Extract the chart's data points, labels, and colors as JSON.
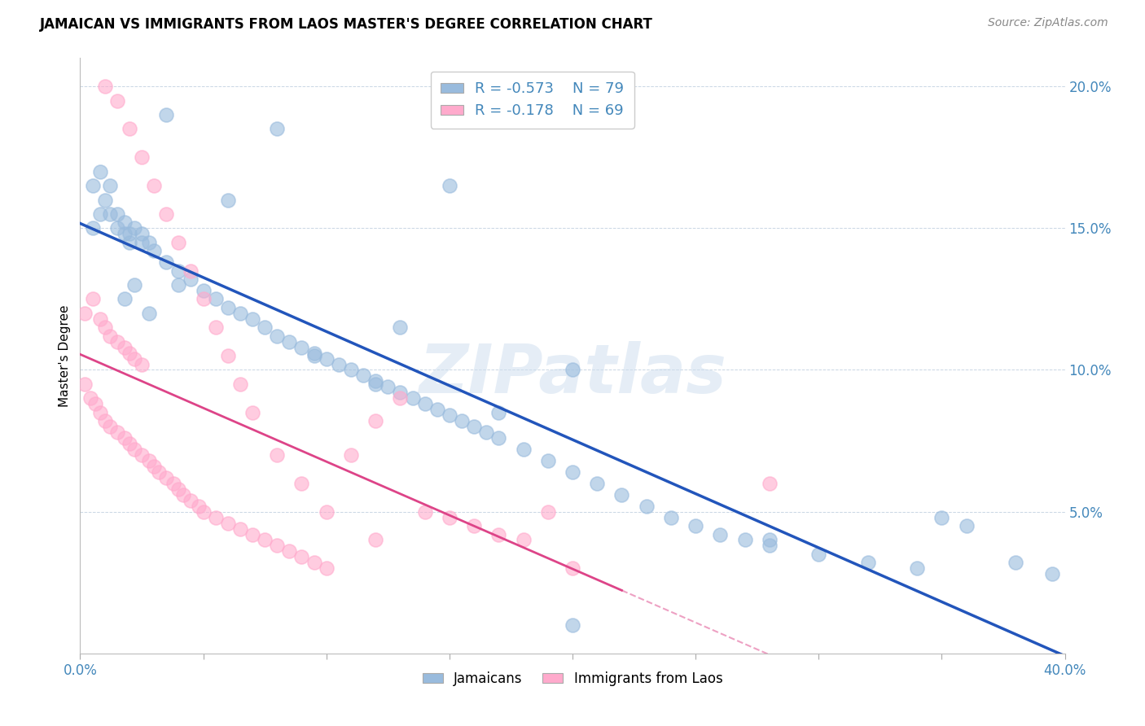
{
  "title": "JAMAICAN VS IMMIGRANTS FROM LAOS MASTER'S DEGREE CORRELATION CHART",
  "source": "Source: ZipAtlas.com",
  "ylabel": "Master's Degree",
  "xlim": [
    0.0,
    0.4
  ],
  "ylim": [
    0.0,
    0.21
  ],
  "yticks": [
    0.05,
    0.1,
    0.15,
    0.2
  ],
  "ytick_labels": [
    "5.0%",
    "10.0%",
    "15.0%",
    "20.0%"
  ],
  "xticks": [
    0.0,
    0.05,
    0.1,
    0.15,
    0.2,
    0.25,
    0.3,
    0.35,
    0.4
  ],
  "xtick_labels_show": [
    "0.0%",
    "",
    "",
    "",
    "",
    "",
    "",
    "",
    "40.0%"
  ],
  "legend_r_blue": "R = -0.573",
  "legend_n_blue": "N = 79",
  "legend_r_pink": "R = -0.178",
  "legend_n_pink": "N = 69",
  "blue_scatter_color": "#99BBDD",
  "pink_scatter_color": "#FFAACC",
  "blue_line_color": "#2255BB",
  "pink_line_color": "#DD4488",
  "watermark": "ZIPatlas",
  "watermark_color": "#CCDDEE",
  "blue_scatter_x": [
    0.005,
    0.008,
    0.01,
    0.012,
    0.015,
    0.018,
    0.02,
    0.022,
    0.025,
    0.028,
    0.005,
    0.008,
    0.012,
    0.015,
    0.018,
    0.02,
    0.025,
    0.03,
    0.035,
    0.04,
    0.045,
    0.05,
    0.055,
    0.06,
    0.065,
    0.07,
    0.075,
    0.08,
    0.085,
    0.09,
    0.095,
    0.1,
    0.105,
    0.11,
    0.115,
    0.12,
    0.125,
    0.13,
    0.135,
    0.14,
    0.145,
    0.15,
    0.155,
    0.16,
    0.165,
    0.17,
    0.18,
    0.19,
    0.2,
    0.21,
    0.22,
    0.23,
    0.24,
    0.25,
    0.26,
    0.27,
    0.28,
    0.3,
    0.32,
    0.34,
    0.36,
    0.38,
    0.395,
    0.06,
    0.08,
    0.13,
    0.15,
    0.12,
    0.095,
    0.04,
    0.035,
    0.028,
    0.022,
    0.018,
    0.2,
    0.17,
    0.28,
    0.35,
    0.2
  ],
  "blue_scatter_y": [
    0.15,
    0.155,
    0.16,
    0.155,
    0.15,
    0.148,
    0.145,
    0.15,
    0.148,
    0.145,
    0.165,
    0.17,
    0.165,
    0.155,
    0.152,
    0.148,
    0.145,
    0.142,
    0.138,
    0.135,
    0.132,
    0.128,
    0.125,
    0.122,
    0.12,
    0.118,
    0.115,
    0.112,
    0.11,
    0.108,
    0.106,
    0.104,
    0.102,
    0.1,
    0.098,
    0.096,
    0.094,
    0.092,
    0.09,
    0.088,
    0.086,
    0.084,
    0.082,
    0.08,
    0.078,
    0.076,
    0.072,
    0.068,
    0.064,
    0.06,
    0.056,
    0.052,
    0.048,
    0.045,
    0.042,
    0.04,
    0.038,
    0.035,
    0.032,
    0.03,
    0.045,
    0.032,
    0.028,
    0.16,
    0.185,
    0.115,
    0.165,
    0.095,
    0.105,
    0.13,
    0.19,
    0.12,
    0.13,
    0.125,
    0.01,
    0.085,
    0.04,
    0.048,
    0.1
  ],
  "pink_scatter_x": [
    0.002,
    0.004,
    0.006,
    0.008,
    0.01,
    0.012,
    0.015,
    0.018,
    0.02,
    0.022,
    0.002,
    0.005,
    0.008,
    0.01,
    0.012,
    0.015,
    0.018,
    0.02,
    0.022,
    0.025,
    0.025,
    0.028,
    0.03,
    0.032,
    0.035,
    0.038,
    0.04,
    0.042,
    0.045,
    0.048,
    0.05,
    0.055,
    0.06,
    0.065,
    0.07,
    0.075,
    0.08,
    0.085,
    0.09,
    0.095,
    0.1,
    0.11,
    0.12,
    0.13,
    0.14,
    0.15,
    0.16,
    0.17,
    0.18,
    0.19,
    0.01,
    0.015,
    0.02,
    0.025,
    0.03,
    0.035,
    0.04,
    0.045,
    0.05,
    0.055,
    0.06,
    0.065,
    0.07,
    0.08,
    0.09,
    0.1,
    0.12,
    0.2,
    0.28
  ],
  "pink_scatter_y": [
    0.095,
    0.09,
    0.088,
    0.085,
    0.082,
    0.08,
    0.078,
    0.076,
    0.074,
    0.072,
    0.12,
    0.125,
    0.118,
    0.115,
    0.112,
    0.11,
    0.108,
    0.106,
    0.104,
    0.102,
    0.07,
    0.068,
    0.066,
    0.064,
    0.062,
    0.06,
    0.058,
    0.056,
    0.054,
    0.052,
    0.05,
    0.048,
    0.046,
    0.044,
    0.042,
    0.04,
    0.038,
    0.036,
    0.034,
    0.032,
    0.03,
    0.07,
    0.082,
    0.09,
    0.05,
    0.048,
    0.045,
    0.042,
    0.04,
    0.05,
    0.2,
    0.195,
    0.185,
    0.175,
    0.165,
    0.155,
    0.145,
    0.135,
    0.125,
    0.115,
    0.105,
    0.095,
    0.085,
    0.07,
    0.06,
    0.05,
    0.04,
    0.03,
    0.06
  ]
}
